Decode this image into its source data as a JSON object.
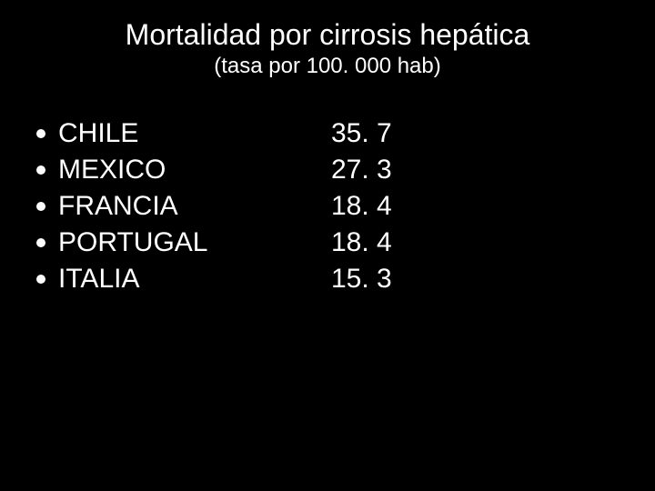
{
  "background_color": "#000000",
  "text_color": "#ffffff",
  "title": "Mortalidad por cirrosis hepática",
  "subtitle": "(tasa por 100. 000 hab)",
  "title_fontsize": 32,
  "subtitle_fontsize": 24,
  "list_fontsize": 30,
  "bullet_color": "#ffffff",
  "bullet_diameter": 10,
  "rows": [
    {
      "country": "CHILE",
      "value": "35. 7"
    },
    {
      "country": "MEXICO",
      "value": "27. 3"
    },
    {
      "country": "FRANCIA",
      "value": "18. 4"
    },
    {
      "country": "PORTUGAL",
      "value": "18. 4"
    },
    {
      "country": "ITALIA",
      "value": "15. 3"
    }
  ]
}
